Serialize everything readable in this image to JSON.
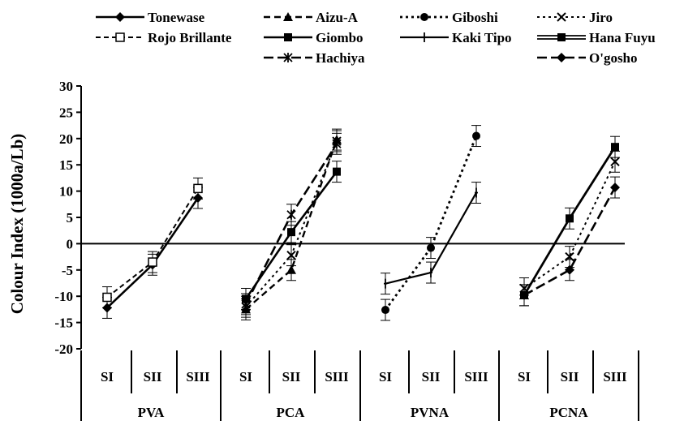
{
  "chart_data": {
    "type": "line",
    "title": "",
    "xlabel": "",
    "ylabel": "Colour Index (1000a/Lb)",
    "ylim": [
      -20,
      30
    ],
    "yticks": [
      30,
      25,
      20,
      15,
      10,
      5,
      0,
      -5,
      -10,
      -15,
      -20
    ],
    "stage_labels": [
      "SI",
      "SII",
      "SIII"
    ],
    "groups": [
      {
        "name": "PVA",
        "series": [
          {
            "name": "Tonewase",
            "values": [
              -12.2,
              -4.0,
              8.7
            ]
          },
          {
            "name": "Rojo Brillante",
            "values": [
              -10.2,
              -3.5,
              10.5
            ]
          }
        ]
      },
      {
        "name": "PCA",
        "series": [
          {
            "name": "Aizu-A",
            "values": [
              -12.5,
              -5.0,
              19.8
            ]
          },
          {
            "name": "Jiro",
            "values": [
              -12.0,
              -2.2,
              19.5
            ]
          },
          {
            "name": "Giombo",
            "values": [
              -10.5,
              2.2,
              13.7
            ]
          },
          {
            "name": "Hachiya",
            "values": [
              -11.5,
              5.5,
              19.0
            ]
          }
        ]
      },
      {
        "name": "PVNA",
        "series": [
          {
            "name": "Giboshi",
            "values": [
              -12.6,
              -0.8,
              20.5
            ]
          },
          {
            "name": "Kaki Tipo",
            "values": [
              -7.6,
              -5.5,
              9.7
            ]
          }
        ]
      },
      {
        "name": "PCNA",
        "series": [
          {
            "name": "Hana Fuyu",
            "values": [
              -9.8,
              4.8,
              18.4
            ]
          },
          {
            "name": "Jiro",
            "values": [
              -8.5,
              -2.5,
              15.6
            ]
          },
          {
            "name": "O'gosho",
            "values": [
              -9.8,
              -5.0,
              10.7
            ]
          }
        ]
      }
    ],
    "legend": [
      {
        "name": "Tonewase",
        "style": "solid",
        "marker": "diamond"
      },
      {
        "name": "Aizu-A",
        "style": "dashed",
        "marker": "triangle"
      },
      {
        "name": "Giboshi",
        "style": "dotted",
        "marker": "circle"
      },
      {
        "name": "Jiro",
        "style": "dotted",
        "marker": "x"
      },
      {
        "name": "Rojo Brillante",
        "style": "dashed",
        "marker": "square-open"
      },
      {
        "name": "Giombo",
        "style": "solid",
        "marker": "square"
      },
      {
        "name": "Kaki Tipo",
        "style": "solid",
        "marker": "plus"
      },
      {
        "name": "Hana Fuyu",
        "style": "double",
        "marker": "square"
      },
      {
        "name": "Hachiya",
        "style": "longdash",
        "marker": "star"
      },
      {
        "name": "O'gosho",
        "style": "longdash",
        "marker": "diamond"
      }
    ],
    "legend_position": "top",
    "grid": false,
    "colors": {
      "line": "#000000",
      "background": "#ffffff"
    }
  }
}
